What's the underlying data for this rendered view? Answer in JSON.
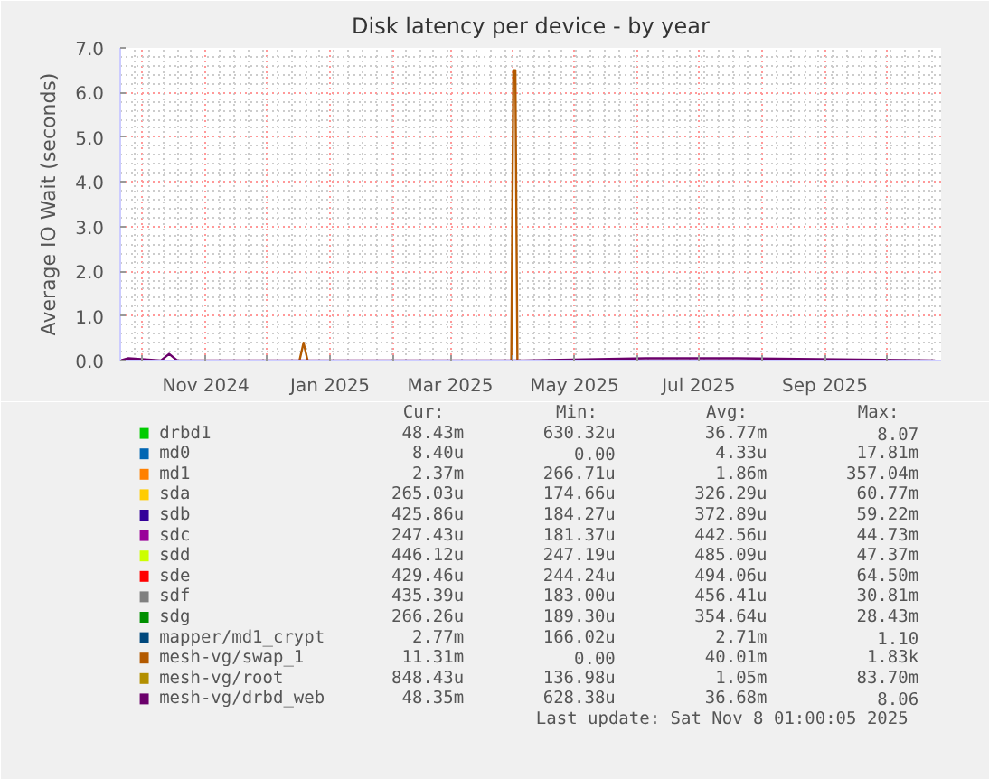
{
  "chart_data": {
    "type": "line",
    "title": "Disk latency per device - by year",
    "ylabel": "Average IO Wait (seconds)",
    "x": [
      "2024-09-20",
      "2024-09-24",
      "2024-10-10",
      "2024-10-14",
      "2024-10-18",
      "2024-12-16",
      "2024-12-19",
      "2024-12-22",
      "2025-02-20",
      "2025-03-29",
      "2025-03-31",
      "2025-04-02",
      "2025-04-04",
      "2025-04-06",
      "2025-06-05",
      "2025-07-20",
      "2025-10-25"
    ],
    "series": [
      {
        "name": "drbd1",
        "color": "#00cc00",
        "values": [
          null,
          null,
          null,
          null,
          null,
          null,
          null,
          null,
          null,
          null,
          null,
          null,
          null,
          null,
          null,
          null,
          null
        ]
      },
      {
        "name": "md0",
        "color": "#0066b3",
        "values": [
          null,
          null,
          null,
          null,
          null,
          null,
          null,
          null,
          null,
          null,
          null,
          null,
          null,
          null,
          null,
          null,
          null
        ]
      },
      {
        "name": "md1",
        "color": "#ff8000",
        "values": [
          null,
          null,
          null,
          null,
          null,
          null,
          null,
          null,
          null,
          null,
          null,
          null,
          null,
          null,
          null,
          null,
          null
        ]
      },
      {
        "name": "sda",
        "color": "#ffcc00",
        "values": [
          null,
          null,
          null,
          null,
          null,
          null,
          null,
          null,
          null,
          null,
          null,
          null,
          null,
          null,
          null,
          null,
          null
        ]
      },
      {
        "name": "sdb",
        "color": "#330099",
        "values": [
          null,
          null,
          null,
          null,
          null,
          null,
          null,
          null,
          null,
          null,
          null,
          null,
          null,
          null,
          null,
          null,
          null
        ]
      },
      {
        "name": "sdc",
        "color": "#990099",
        "values": [
          null,
          null,
          null,
          null,
          null,
          null,
          null,
          null,
          null,
          null,
          null,
          null,
          null,
          null,
          null,
          null,
          null
        ]
      },
      {
        "name": "sdd",
        "color": "#ccff00",
        "values": [
          null,
          null,
          null,
          null,
          null,
          null,
          null,
          null,
          null,
          null,
          null,
          null,
          null,
          null,
          null,
          null,
          null
        ]
      },
      {
        "name": "sde",
        "color": "#ff0000",
        "values": [
          null,
          null,
          null,
          null,
          null,
          null,
          null,
          null,
          null,
          null,
          null,
          null,
          null,
          null,
          null,
          null,
          null
        ]
      },
      {
        "name": "sdf",
        "color": "#808080",
        "values": [
          null,
          null,
          null,
          null,
          null,
          null,
          null,
          null,
          null,
          null,
          null,
          null,
          null,
          null,
          null,
          null,
          null
        ]
      },
      {
        "name": "sdg",
        "color": "#008f00",
        "values": [
          null,
          null,
          null,
          null,
          null,
          null,
          null,
          null,
          null,
          null,
          null,
          null,
          null,
          null,
          null,
          null,
          null
        ]
      },
      {
        "name": "mapper/md1_crypt",
        "color": "#00487d",
        "values": [
          null,
          null,
          null,
          null,
          null,
          null,
          null,
          null,
          null,
          null,
          null,
          null,
          null,
          null,
          null,
          null,
          null
        ]
      },
      {
        "name": "mesh-vg/swap_1",
        "color": "#b35a00",
        "x": [
          "2024-12-17",
          "2024-12-19",
          "2024-12-21",
          "2025-01-20",
          "2025-03-31",
          "2025-04-01",
          "2025-04-02",
          "2025-04-03"
        ],
        "values": [
          0,
          0.4,
          0,
          null,
          0,
          6.5,
          6.5,
          0
        ]
      },
      {
        "name": "mesh-vg/root",
        "color": "#b38f00",
        "values": [
          null,
          null,
          null,
          null,
          null,
          null,
          null,
          null,
          null,
          null,
          null,
          null,
          null,
          null,
          null,
          null,
          null
        ]
      },
      {
        "name": "mesh-vg/drbd_web",
        "color": "#6b006b",
        "values": [
          0,
          0.05,
          0,
          0.15,
          0,
          0,
          0,
          0,
          0,
          0,
          0,
          0,
          0,
          0,
          0.05,
          0.05,
          0
        ]
      }
    ],
    "xlim": [
      "2024-09-20",
      "2025-10-28"
    ],
    "xticks": [
      {
        "value": "2024-10-01",
        "label": null
      },
      {
        "value": "2024-11-01",
        "label": "Nov 2024"
      },
      {
        "value": "2024-12-01",
        "label": null
      },
      {
        "value": "2025-01-01",
        "label": "Jan 2025"
      },
      {
        "value": "2025-02-01",
        "label": null
      },
      {
        "value": "2025-03-01",
        "label": "Mar 2025"
      },
      {
        "value": "2025-04-01",
        "label": null
      },
      {
        "value": "2025-05-01",
        "label": "May 2025"
      },
      {
        "value": "2025-06-01",
        "label": null
      },
      {
        "value": "2025-07-01",
        "label": "Jul 2025"
      },
      {
        "value": "2025-08-01",
        "label": null
      },
      {
        "value": "2025-09-01",
        "label": "Sep 2025"
      },
      {
        "value": "2025-10-01",
        "label": null
      }
    ],
    "ylim": [
      0,
      7
    ],
    "yticks": [
      {
        "value": 0,
        "label": "0.0"
      },
      {
        "value": 1,
        "label": "1.0"
      },
      {
        "value": 2,
        "label": "2.0"
      },
      {
        "value": 3,
        "label": "3.0"
      },
      {
        "value": 4,
        "label": "4.0"
      },
      {
        "value": 5,
        "label": "5.0"
      },
      {
        "value": 6,
        "label": "6.0"
      },
      {
        "value": 7,
        "label": "7.0"
      }
    ],
    "grid": true,
    "legend": "bottom",
    "annotations": [
      "Cur:",
      "Min:",
      "Avg:",
      "Max:",
      "48.43m",
      "630.32u",
      "36.77m",
      "8.07",
      "8.40u",
      "0.00",
      "4.33u",
      "17.81m",
      "2.37m",
      "266.71u",
      "1.86m",
      "357.04m",
      "265.03u",
      "174.66u",
      "326.29u",
      "60.77m",
      "425.86u",
      "184.27u",
      "372.89u",
      "59.22m",
      "247.43u",
      "181.37u",
      "442.56u",
      "44.73m",
      "446.12u",
      "247.19u",
      "485.09u",
      "47.37m",
      "429.46u",
      "244.24u",
      "494.06u",
      "64.50m",
      "435.39u",
      "183.00u",
      "456.41u",
      "30.81m",
      "266.26u",
      "189.30u",
      "354.64u",
      "28.43m",
      "2.77m",
      "166.02u",
      "2.71m",
      "1.10",
      "11.31m",
      "0.00",
      "40.01m",
      "1.83k",
      "848.43u",
      "136.98u",
      "1.05m",
      "83.70m",
      "48.35m",
      "628.38u",
      "36.68m",
      "8.06",
      "Last update: Sat Nov  8 01:00:05 2025"
    ]
  }
}
